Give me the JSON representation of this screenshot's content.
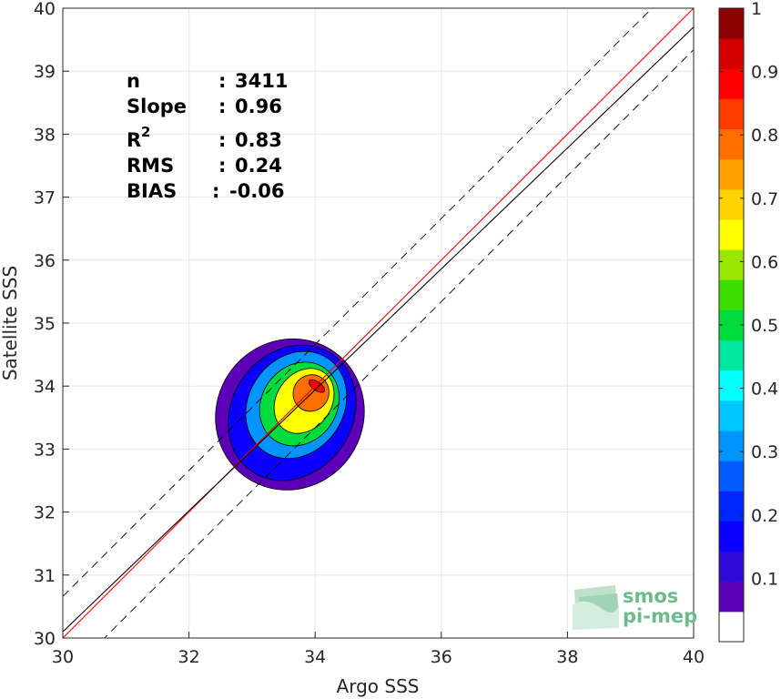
{
  "chart_data": {
    "type": "heatmap",
    "subtype": "filled-contour density scatter",
    "xlabel": "Argo SSS",
    "ylabel": "Satellite SSS",
    "xlim": [
      30,
      40
    ],
    "ylim": [
      30,
      40
    ],
    "xticks": [
      30,
      32,
      34,
      36,
      38,
      40
    ],
    "yticks": [
      30,
      31,
      32,
      33,
      34,
      35,
      36,
      37,
      38,
      39,
      40
    ],
    "grid": true,
    "stats": [
      {
        "label": "n",
        "sep": ": ",
        "value": "3411"
      },
      {
        "label": "Slope",
        "sep": ": ",
        "value": "0.96"
      },
      {
        "label": "R",
        "sup": "2",
        "sep": ": ",
        "value": "0.83"
      },
      {
        "label": "RMS",
        "sep": ": ",
        "value": "0.24"
      },
      {
        "label": "BIAS",
        "sep": ": ",
        "value": "-0.06"
      }
    ],
    "lines": [
      {
        "name": "1:1",
        "color": "#ff0000",
        "style": "solid",
        "slope": 1,
        "intercept": 0
      },
      {
        "name": "fit",
        "color": "#000000",
        "style": "solid",
        "slope": 0.96,
        "intercept": 1.3
      },
      {
        "name": "upper",
        "color": "#000000",
        "style": "dashed",
        "slope": 1,
        "intercept": 0.66
      },
      {
        "name": "lower",
        "color": "#000000",
        "style": "dashed",
        "slope": 1,
        "intercept": -0.66
      }
    ],
    "density": {
      "center": [
        34.02,
        34.02
      ],
      "major_axis_angle_deg": 55,
      "levels": [
        0.05,
        0.1,
        0.15,
        0.2,
        0.25,
        0.3,
        0.35,
        0.4,
        0.45,
        0.5,
        0.55,
        0.6,
        0.65,
        0.7,
        0.75,
        0.8,
        0.85,
        0.9,
        0.95
      ],
      "contours": [
        {
          "level": 0.05,
          "x_range": [
            32.42,
            34.78
          ],
          "y_range": [
            32.35,
            34.75
          ]
        },
        {
          "level": 0.15,
          "x_range": [
            32.62,
            34.65
          ],
          "y_range": [
            32.5,
            34.65
          ]
        },
        {
          "level": 0.3,
          "x_range": [
            32.9,
            34.5
          ],
          "y_range": [
            32.85,
            34.55
          ]
        },
        {
          "level": 0.5,
          "x_range": [
            33.12,
            34.38
          ],
          "y_range": [
            33.05,
            34.38
          ]
        },
        {
          "level": 0.65,
          "x_range": [
            33.35,
            34.3
          ],
          "y_range": [
            33.25,
            34.28
          ]
        },
        {
          "level": 0.8,
          "x_range": [
            33.65,
            34.22
          ],
          "y_range": [
            33.6,
            34.18
          ]
        },
        {
          "level": 0.9,
          "x_range": [
            33.9,
            34.15
          ],
          "y_range": [
            33.9,
            34.1
          ]
        }
      ]
    },
    "colorbar": {
      "range": [
        0,
        1
      ],
      "ticks": [
        "0.1",
        "0.2",
        "0.3",
        "0.4",
        "0.5",
        "0.6",
        "0.7",
        "0.8",
        "0.9",
        "1"
      ],
      "colors": [
        "#ffffff",
        "#5b00b8",
        "#2e0ad6",
        "#0b00ff",
        "#0026ff",
        "#005cff",
        "#0094ff",
        "#00c8ff",
        "#00ffff",
        "#00e6a0",
        "#00dc3c",
        "#3cdc00",
        "#9be600",
        "#ffff00",
        "#ffd200",
        "#ff9f00",
        "#ff6e00",
        "#ff3c00",
        "#ff0000",
        "#d20000",
        "#8c0000"
      ]
    }
  },
  "logo": {
    "line1": "smos",
    "line2": "pi-mep",
    "color": "#6dbb8c"
  }
}
